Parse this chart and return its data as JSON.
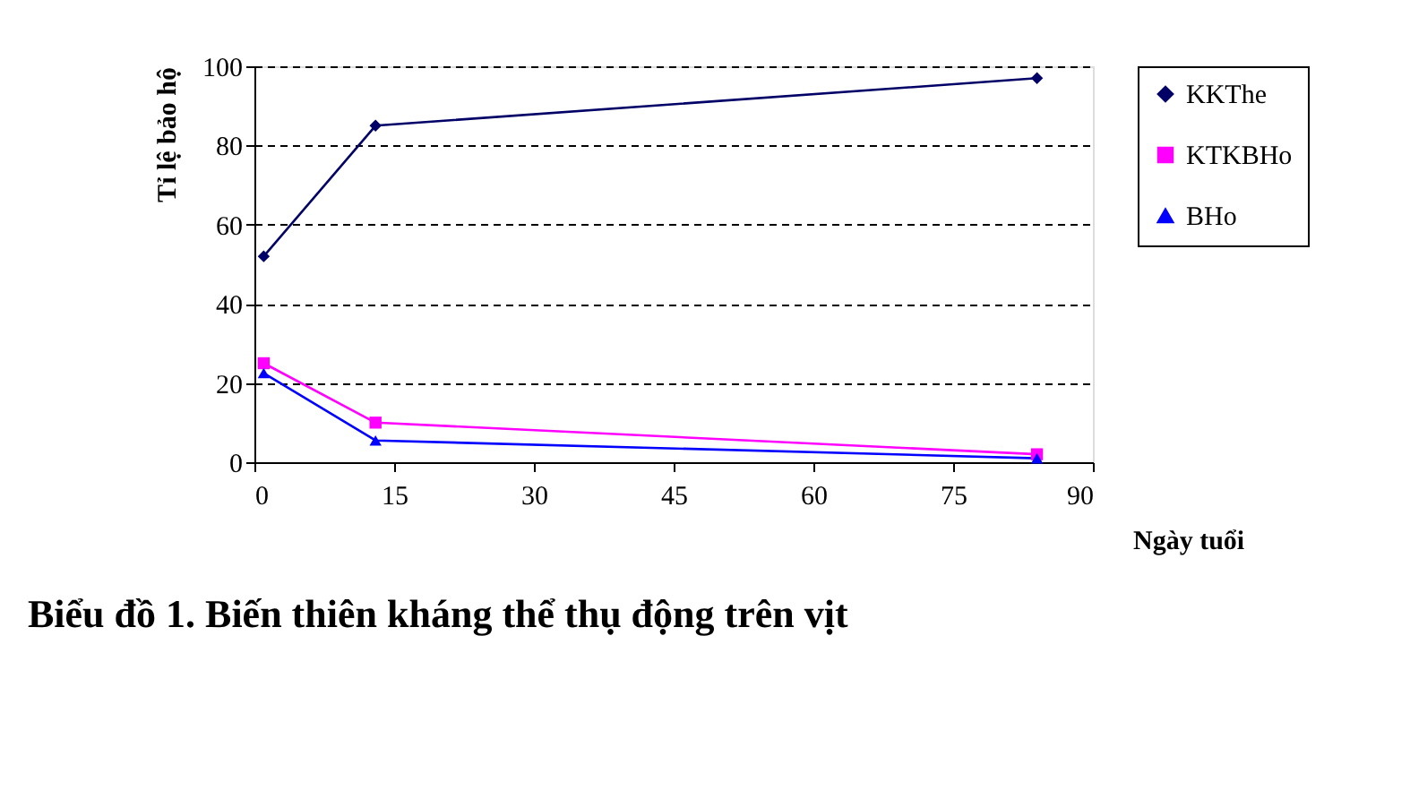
{
  "chart_data": {
    "type": "line",
    "title": "Biểu đồ 1. Biến thiên kháng thể thụ động trên vịt",
    "xlabel": "Ngày tuổi",
    "ylabel": "Tỉ lệ bảo hộ",
    "x": [
      1,
      13,
      84
    ],
    "series": [
      {
        "name": "KKThe",
        "color": "#000066",
        "marker": "diamond",
        "values": [
          52,
          85,
          97
        ]
      },
      {
        "name": "KTKBHo",
        "color": "#ff00ff",
        "marker": "square",
        "values": [
          25,
          10,
          2
        ]
      },
      {
        "name": "BHo",
        "color": "#0000ff",
        "marker": "triangle",
        "values": [
          22.5,
          5.5,
          1
        ]
      }
    ],
    "xlim": [
      0,
      90
    ],
    "xticks": [
      0,
      15,
      30,
      45,
      60,
      75,
      90
    ],
    "ylim": [
      0,
      100
    ],
    "yticks": [
      0,
      20,
      40,
      60,
      80,
      100
    ],
    "grid": "y",
    "legend": "right",
    "line_style": "solid"
  }
}
